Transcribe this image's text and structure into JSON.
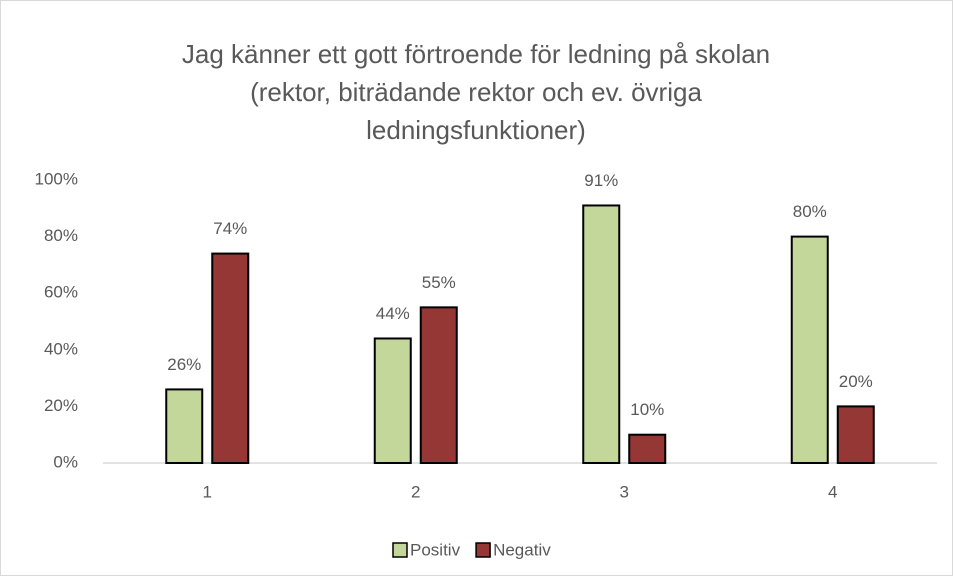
{
  "chart_data": {
    "type": "bar",
    "title": [
      "Jag känner ett gott förtroende för ledning på skolan",
      "(rektor, biträdande rektor och ev. övriga",
      "ledningsfunktioner)"
    ],
    "categories": [
      "1",
      "2",
      "3",
      "4"
    ],
    "series": [
      {
        "name": "Positiv",
        "color": "#c4d79b",
        "values": [
          26,
          44,
          91,
          80
        ],
        "value_labels": [
          "26%",
          "44%",
          "91%",
          "80%"
        ]
      },
      {
        "name": "Negativ",
        "color": "#953735",
        "values": [
          74,
          55,
          10,
          20
        ],
        "value_labels": [
          "74%",
          "55%",
          "10%",
          "20%"
        ]
      }
    ],
    "ylim": [
      0,
      100
    ],
    "yticks": [
      {
        "value": 0,
        "label": "0%"
      },
      {
        "value": 20,
        "label": "20%"
      },
      {
        "value": 40,
        "label": "40%"
      },
      {
        "value": 60,
        "label": "60%"
      },
      {
        "value": 80,
        "label": "80%"
      },
      {
        "value": 100,
        "label": "100%"
      }
    ],
    "grid": false,
    "legend": "bottom"
  }
}
